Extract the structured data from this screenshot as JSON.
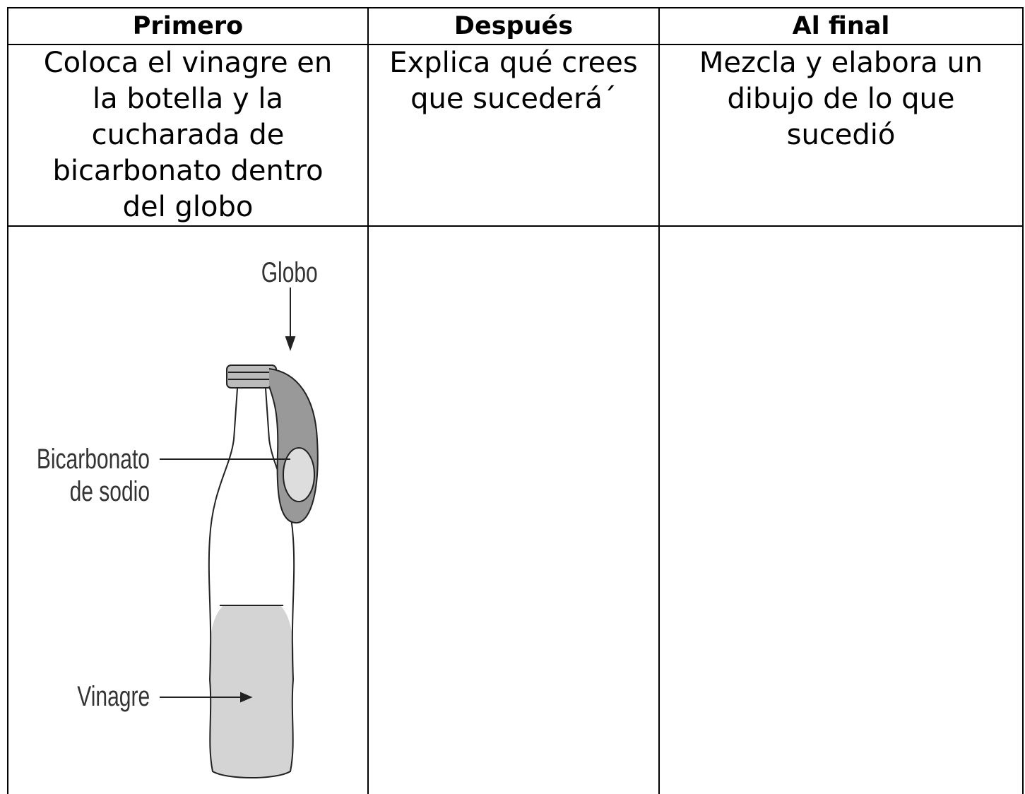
{
  "table": {
    "header": [
      "Primero",
      "Después",
      "Al final"
    ],
    "rows": [
      [
        "Coloca el vinagre en la botella y la cucharada de bicarbonato dentro del globo",
        "Explica qué crees que sucederá´",
        "Mezcla y elabora un dibujo de lo que sucedió"
      ]
    ]
  },
  "illustration": {
    "labels": {
      "balloon": "Globo",
      "baking_soda": "Bicarbonato de sodio",
      "vinegar": "Vinagre"
    }
  }
}
